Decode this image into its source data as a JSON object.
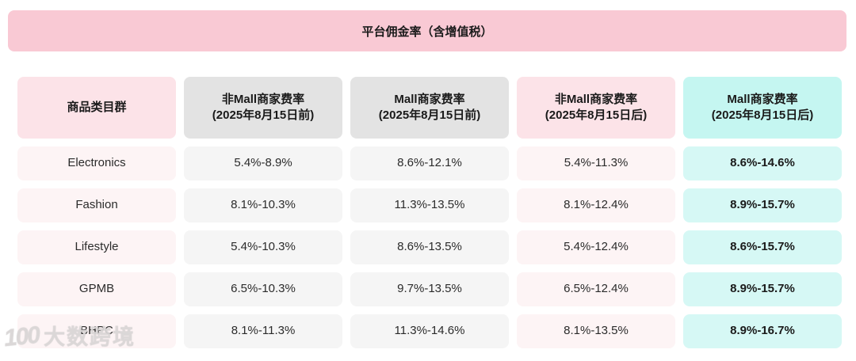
{
  "banner": {
    "title": "平台佣金率（含增值税）"
  },
  "table": {
    "columns": [
      {
        "label": "商品类目群",
        "sublabel": ""
      },
      {
        "label": "非Mall商家费率",
        "sublabel": "(2025年8月15日前)"
      },
      {
        "label": "Mall商家费率",
        "sublabel": "(2025年8月15日前)"
      },
      {
        "label": "非Mall商家费率",
        "sublabel": "(2025年8月15日后)"
      },
      {
        "label": "Mall商家费率",
        "sublabel": "(2025年8月15日后)"
      }
    ],
    "rows": [
      {
        "category": "Electronics",
        "values": [
          "5.4%-8.9%",
          "8.6%-12.1%",
          "5.4%-11.3%",
          "8.6%-14.6%"
        ]
      },
      {
        "category": "Fashion",
        "values": [
          "8.1%-10.3%",
          "11.3%-13.5%",
          "8.1%-12.4%",
          "8.9%-15.7%"
        ]
      },
      {
        "category": "Lifestyle",
        "values": [
          "5.4%-10.3%",
          "8.6%-13.5%",
          "5.4%-12.4%",
          "8.6%-15.7%"
        ]
      },
      {
        "category": "GPMB",
        "values": [
          "6.5%-10.3%",
          "9.7%-13.5%",
          "6.5%-12.4%",
          "8.9%-15.7%"
        ]
      },
      {
        "category": "BHPC",
        "values": [
          "8.1%-11.3%",
          "11.3%-14.6%",
          "8.1%-13.5%",
          "8.9%-16.7%"
        ]
      }
    ]
  },
  "watermark": {
    "logo": "100",
    "text": "大数跨境"
  },
  "colors": {
    "banner_pink": "#f9c9d4",
    "header_pink": "#fce3e8",
    "header_gray": "#e3e3e3",
    "header_cyan": "#c5f6f1",
    "cell_pink": "#fdf4f5",
    "cell_gray": "#f5f5f5",
    "cell_cyan": "#d6f8f5"
  }
}
